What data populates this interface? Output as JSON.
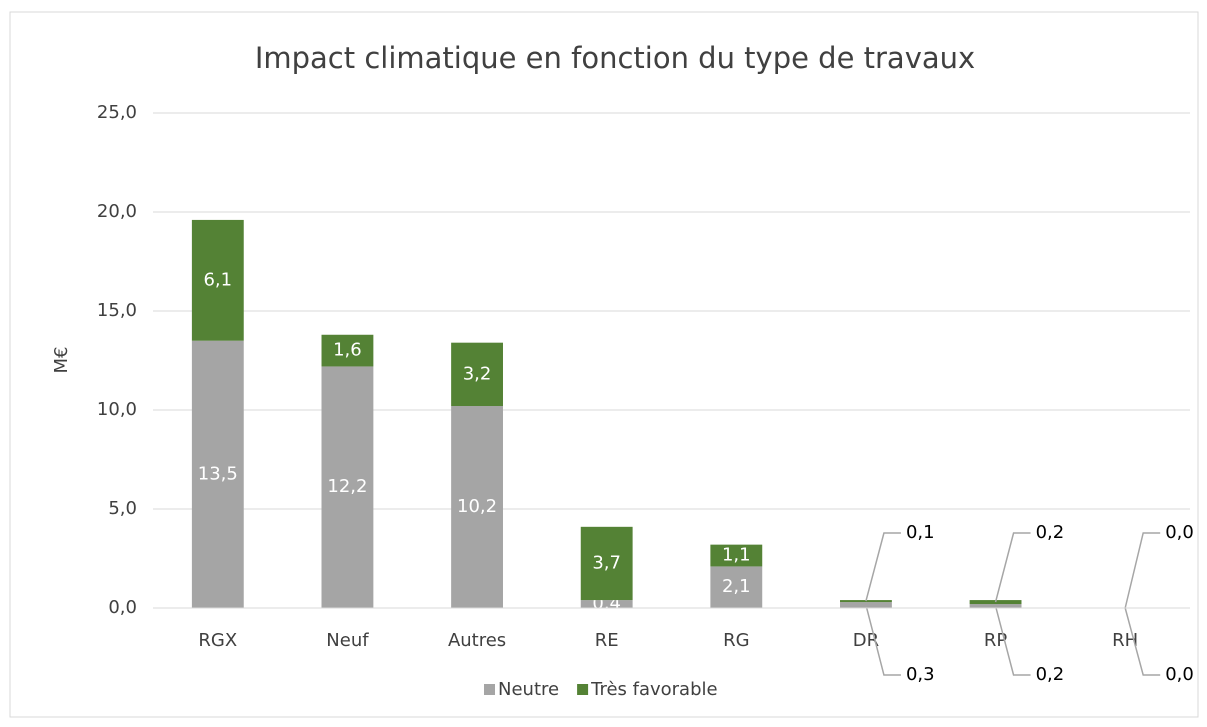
{
  "chart_data": {
    "type": "stacked-bar",
    "title": "Impact climatique en fonction du type de travaux",
    "y_label": "M€",
    "categories": [
      "RGX",
      "Neuf",
      "Autres",
      "RE",
      "RG",
      "DR",
      "RP",
      "RH"
    ],
    "series": [
      {
        "name": "Neutre",
        "color": "#a5a5a5",
        "values": [
          13.5,
          12.2,
          10.2,
          0.4,
          2.1,
          0.3,
          0.2,
          0.0
        ],
        "value_labels": [
          "13,5",
          "12,2",
          "10,2",
          "0,4",
          "2,1",
          "0,3",
          "0,2",
          "0,0"
        ]
      },
      {
        "name": "Très favorable",
        "color": "#548235",
        "values": [
          6.1,
          1.6,
          3.2,
          3.7,
          1.1,
          0.1,
          0.2,
          0.0
        ],
        "value_labels": [
          "6,1",
          "1,6",
          "3,2",
          "3,7",
          "1,1",
          "0,1",
          "0,2",
          "0,0"
        ]
      }
    ],
    "ylim": [
      0,
      25
    ],
    "yticks": [
      {
        "value": 0,
        "label": "0,0"
      },
      {
        "value": 5,
        "label": "5,0"
      },
      {
        "value": 10,
        "label": "10,0"
      },
      {
        "value": 15,
        "label": "15,0"
      },
      {
        "value": 20,
        "label": "20,0"
      },
      {
        "value": 25,
        "label": "25,0"
      }
    ],
    "grid": true,
    "legend": "bottom"
  }
}
